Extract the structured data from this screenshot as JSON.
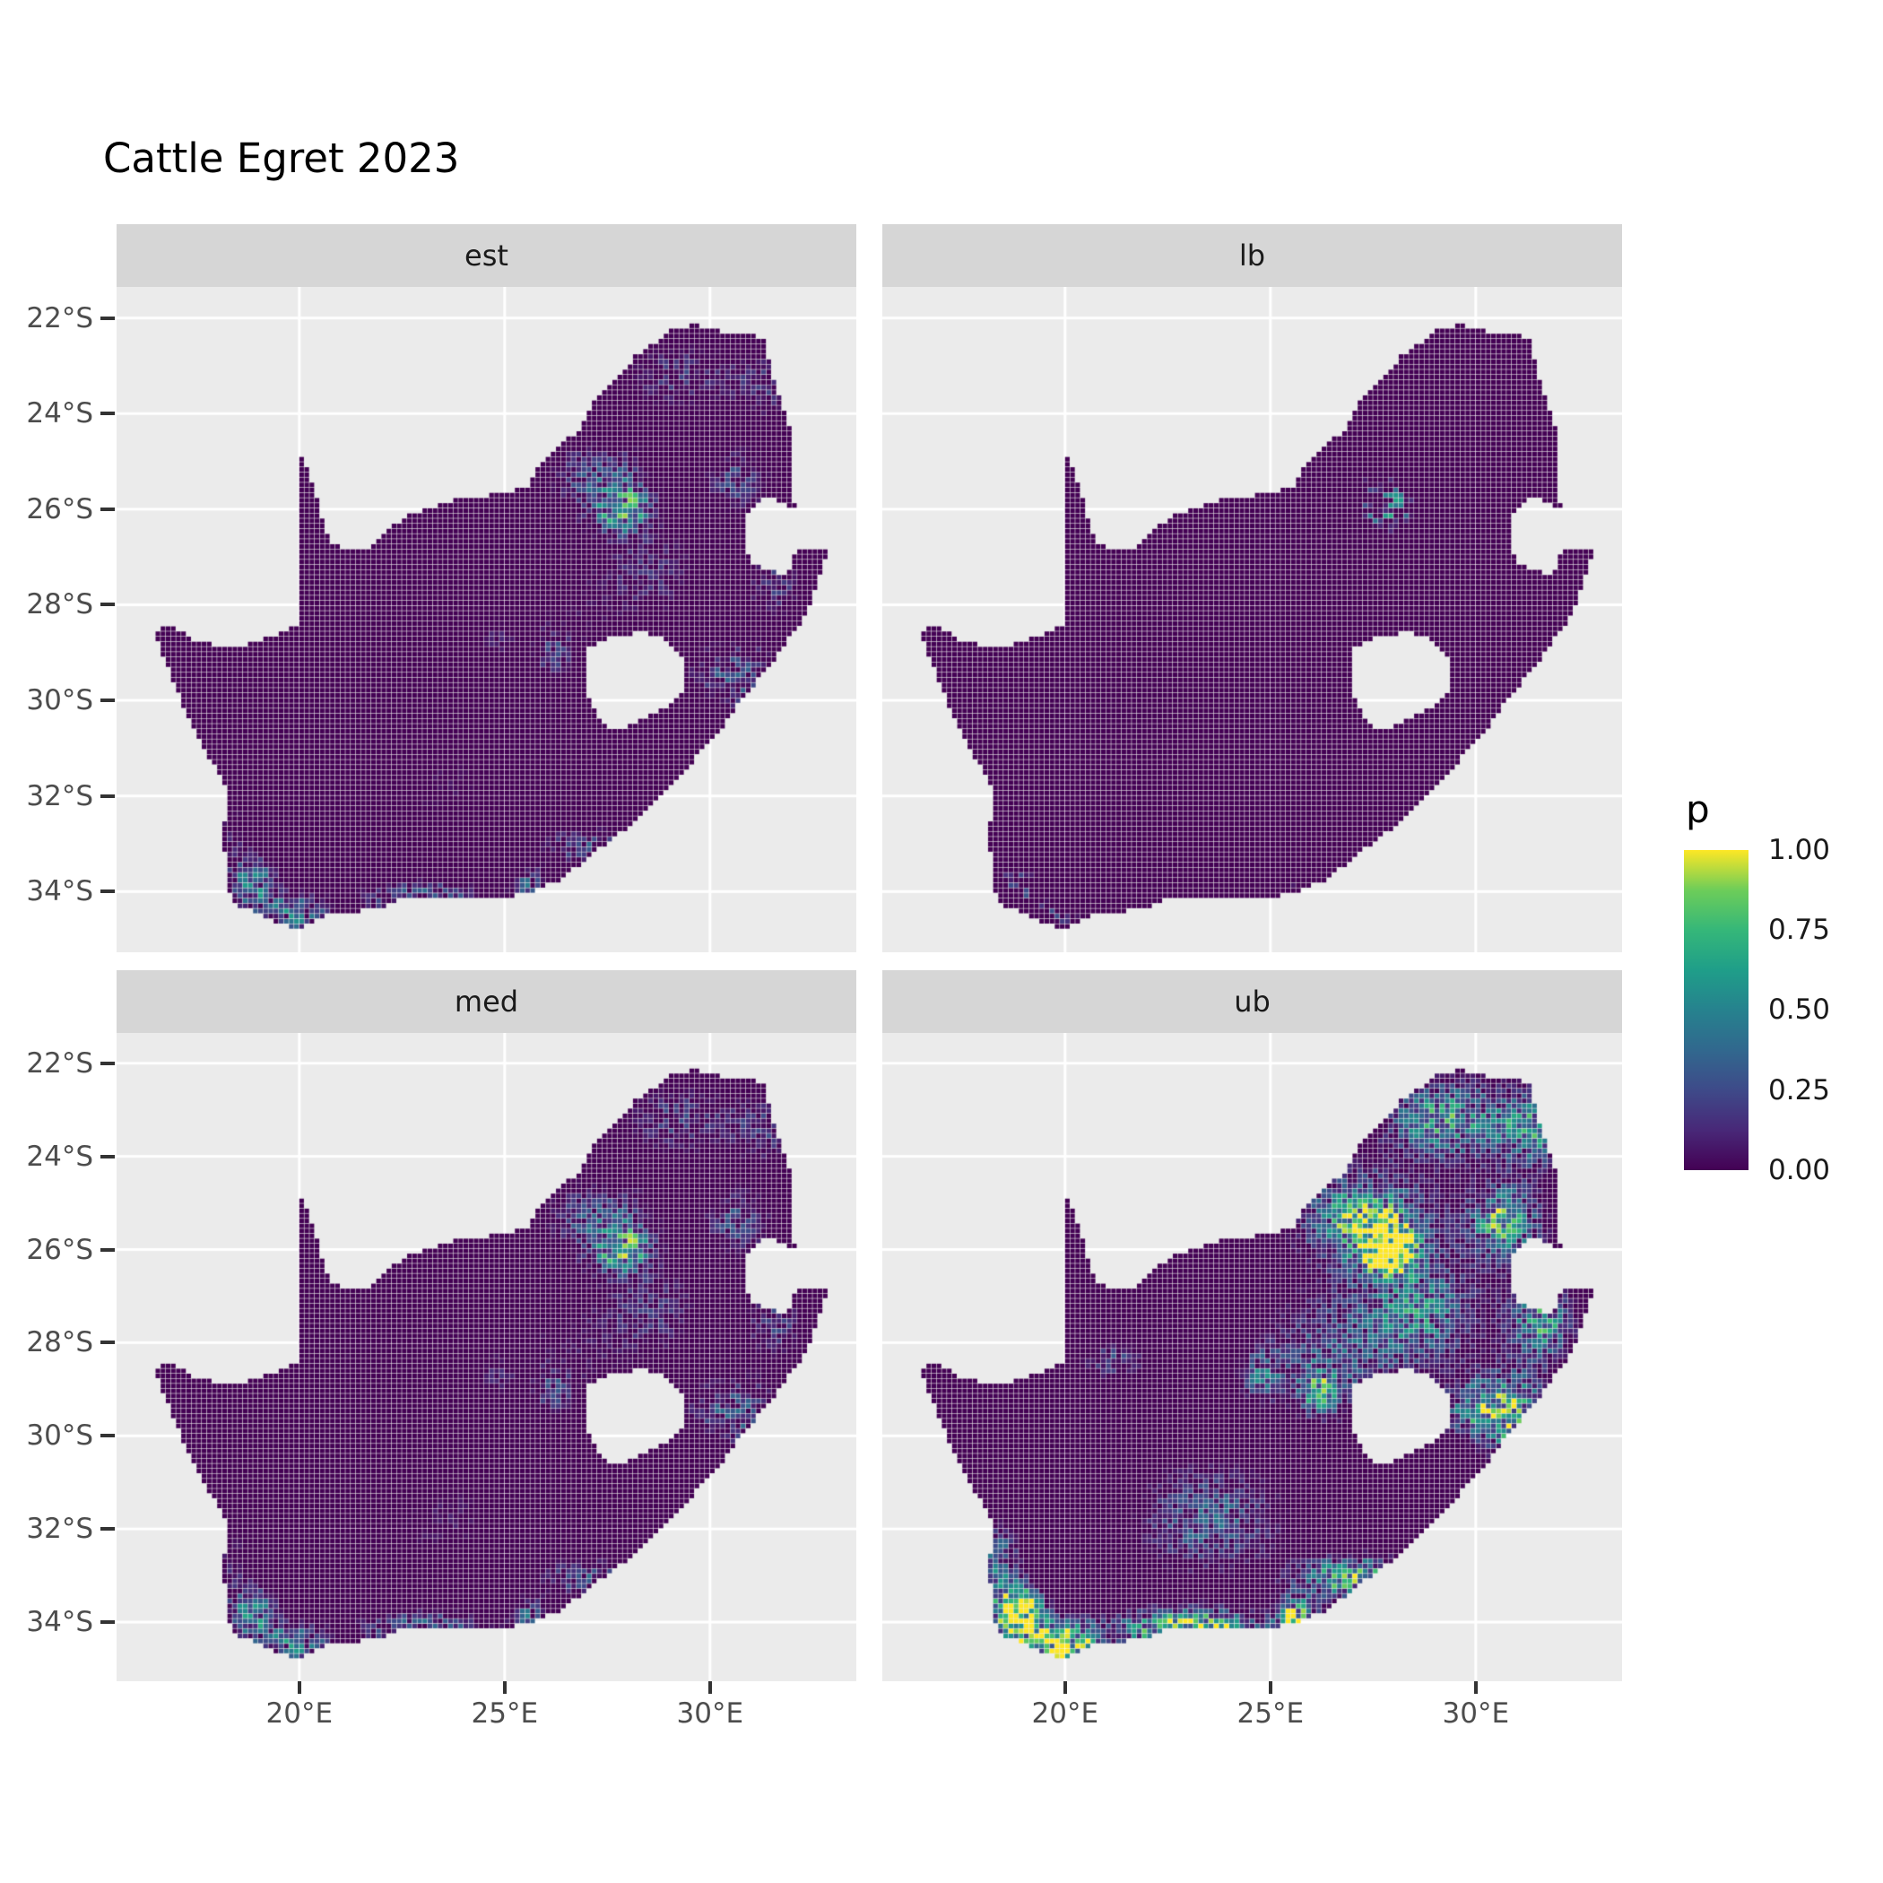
{
  "title": "Cattle Egret 2023",
  "facets": [
    {
      "id": "est",
      "label": "est"
    },
    {
      "id": "lb",
      "label": "lb"
    },
    {
      "id": "med",
      "label": "med"
    },
    {
      "id": "ub",
      "label": "ub"
    }
  ],
  "axes": {
    "x_ticks": [
      {
        "label": "20°E",
        "deg": 20
      },
      {
        "label": "25°E",
        "deg": 25
      },
      {
        "label": "30°E",
        "deg": 30
      }
    ],
    "y_ticks": [
      {
        "label": "22°S",
        "deg": 22
      },
      {
        "label": "24°S",
        "deg": 24
      },
      {
        "label": "26°S",
        "deg": 26
      },
      {
        "label": "28°S",
        "deg": 28
      },
      {
        "label": "30°S",
        "deg": 30
      },
      {
        "label": "32°S",
        "deg": 32
      },
      {
        "label": "34°S",
        "deg": 34
      }
    ]
  },
  "legend": {
    "title": "p",
    "labels": [
      {
        "text": "1.00",
        "p": 1.0
      },
      {
        "text": "0.75",
        "p": 0.75
      },
      {
        "text": "0.50",
        "p": 0.5
      },
      {
        "text": "0.25",
        "p": 0.25
      },
      {
        "text": "0.00",
        "p": 0.0
      }
    ],
    "bar_ticks": [
      0.25,
      0.5,
      0.75
    ]
  },
  "colors": {
    "panel_bg": "#EBEBEB",
    "strip_bg": "#D6D6D6",
    "grid": "#FFFFFF",
    "axis_text": "#4D4D4D",
    "tick_mark": "#333333",
    "title_text": "#000000",
    "strip_text": "#1A1A1A",
    "viridis": [
      [
        "0",
        "#440154"
      ],
      [
        "0.125",
        "#482878"
      ],
      [
        "0.25",
        "#3E4A89"
      ],
      [
        "0.375",
        "#31688E"
      ],
      [
        "0.5",
        "#26828E"
      ],
      [
        "0.625",
        "#1F9E89"
      ],
      [
        "0.75",
        "#35B779"
      ],
      [
        "0.875",
        "#6DCD59"
      ],
      [
        "1",
        "#FDE725"
      ]
    ]
  },
  "chart_data": {
    "type": "heatmap",
    "title": "Cattle Egret 2023",
    "variable": "p",
    "facet_labels": [
      "est",
      "lb",
      "med",
      "ub"
    ],
    "x": {
      "tick_labels": [
        "20°E",
        "25°E",
        "30°E"
      ],
      "range_deg_east": [
        15.55,
        33.56
      ]
    },
    "y": {
      "tick_labels": [
        "22°S",
        "24°S",
        "26°S",
        "28°S",
        "30°S",
        "32°S",
        "34°S"
      ],
      "range_deg_south": [
        21.35,
        35.27
      ]
    },
    "legend": {
      "title": "p",
      "range": [
        0,
        1
      ],
      "tick_labels": [
        "1.00",
        "0.75",
        "0.50",
        "0.25",
        "0.00"
      ],
      "palette": "viridis"
    },
    "map": {
      "region": "South Africa raster grid (Lesotho shown as hole, Eswatini as eastern notch)",
      "outline": [
        [
          16.45,
          -28.58
        ],
        [
          16.9,
          -28.4
        ],
        [
          17.35,
          -28.7
        ],
        [
          17.95,
          -28.85
        ],
        [
          18.6,
          -28.87
        ],
        [
          19.25,
          -28.7
        ],
        [
          19.7,
          -28.5
        ],
        [
          19.99,
          -28.45
        ],
        [
          19.99,
          -24.78
        ],
        [
          20.25,
          -25.25
        ],
        [
          20.5,
          -25.9
        ],
        [
          20.63,
          -26.45
        ],
        [
          20.85,
          -26.75
        ],
        [
          21.3,
          -26.87
        ],
        [
          21.8,
          -26.8
        ],
        [
          22.15,
          -26.4
        ],
        [
          22.65,
          -26.15
        ],
        [
          23.25,
          -25.95
        ],
        [
          23.9,
          -25.77
        ],
        [
          24.4,
          -25.78
        ],
        [
          24.9,
          -25.65
        ],
        [
          25.55,
          -25.55
        ],
        [
          25.9,
          -25.0
        ],
        [
          26.25,
          -24.7
        ],
        [
          26.85,
          -24.35
        ],
        [
          27.25,
          -23.65
        ],
        [
          27.7,
          -23.25
        ],
        [
          28.2,
          -22.8
        ],
        [
          28.7,
          -22.5
        ],
        [
          29.1,
          -22.2
        ],
        [
          29.7,
          -22.15
        ],
        [
          30.3,
          -22.3
        ],
        [
          31.0,
          -22.35
        ],
        [
          31.3,
          -22.42
        ],
        [
          31.55,
          -23.3
        ],
        [
          31.85,
          -24.0
        ],
        [
          32.0,
          -24.5
        ],
        [
          31.95,
          -25.1
        ],
        [
          32.02,
          -25.65
        ],
        [
          32.08,
          -25.98
        ],
        [
          31.4,
          -25.75
        ],
        [
          30.98,
          -26.0
        ],
        [
          30.82,
          -26.35
        ],
        [
          30.82,
          -26.85
        ],
        [
          31.1,
          -27.15
        ],
        [
          31.5,
          -27.32
        ],
        [
          31.9,
          -27.33
        ],
        [
          32.12,
          -26.86
        ],
        [
          32.55,
          -26.86
        ],
        [
          32.89,
          -26.86
        ],
        [
          32.6,
          -27.6
        ],
        [
          32.35,
          -28.2
        ],
        [
          31.95,
          -28.7
        ],
        [
          31.35,
          -29.4
        ],
        [
          30.7,
          -30.05
        ],
        [
          30.2,
          -30.7
        ],
        [
          29.4,
          -31.45
        ],
        [
          28.7,
          -32.05
        ],
        [
          28.05,
          -32.65
        ],
        [
          27.3,
          -33.1
        ],
        [
          26.4,
          -33.75
        ],
        [
          25.65,
          -34.0
        ],
        [
          24.8,
          -34.2
        ],
        [
          23.9,
          -34.1
        ],
        [
          23.3,
          -34.1
        ],
        [
          22.5,
          -34.15
        ],
        [
          21.8,
          -34.4
        ],
        [
          20.8,
          -34.45
        ],
        [
          20.0,
          -34.82
        ],
        [
          19.3,
          -34.62
        ],
        [
          18.8,
          -34.4
        ],
        [
          18.45,
          -34.3
        ],
        [
          18.3,
          -34.0
        ],
        [
          18.25,
          -33.5
        ],
        [
          18.1,
          -32.8
        ],
        [
          18.3,
          -32.1
        ],
        [
          18.15,
          -31.65
        ],
        [
          17.85,
          -31.3
        ],
        [
          17.5,
          -30.7
        ],
        [
          17.15,
          -30.1
        ],
        [
          16.9,
          -29.5
        ],
        [
          16.65,
          -29.0
        ]
      ],
      "lesotho_hole": [
        [
          27.05,
          -28.92
        ],
        [
          27.6,
          -28.66
        ],
        [
          28.2,
          -28.6
        ],
        [
          28.7,
          -28.62
        ],
        [
          29.15,
          -28.92
        ],
        [
          29.45,
          -29.3
        ],
        [
          29.33,
          -29.78
        ],
        [
          28.9,
          -30.18
        ],
        [
          28.3,
          -30.42
        ],
        [
          27.75,
          -30.64
        ],
        [
          27.33,
          -30.44
        ],
        [
          27.08,
          -29.98
        ],
        [
          26.95,
          -29.45
        ]
      ]
    },
    "render_model": {
      "note": "approximate reconstruction of the probability raster; clusters are [lonE, latS, sigma_lon, sigma_lat, amplitude]",
      "cell_deg_lon": 0.125,
      "cell_deg_lat": 0.1074,
      "clusters": [
        [
          27.9,
          -26.0,
          0.55,
          0.45,
          1.15
        ],
        [
          27.3,
          -25.4,
          1.3,
          0.9,
          0.55
        ],
        [
          29.3,
          -23.2,
          1.5,
          0.8,
          0.45
        ],
        [
          31.4,
          -23.4,
          0.8,
          0.8,
          0.4
        ],
        [
          30.7,
          -25.4,
          0.8,
          0.7,
          0.5
        ],
        [
          31.6,
          -27.6,
          0.7,
          0.7,
          0.45
        ],
        [
          31.0,
          -29.6,
          0.8,
          0.9,
          0.5
        ],
        [
          30.0,
          -29.4,
          0.7,
          0.6,
          0.4
        ],
        [
          27.0,
          -33.05,
          1.3,
          0.45,
          0.6
        ],
        [
          23.0,
          -34.15,
          1.6,
          0.4,
          0.75
        ],
        [
          19.9,
          -34.5,
          0.9,
          0.5,
          0.85
        ],
        [
          18.85,
          -33.8,
          0.6,
          0.55,
          0.95
        ],
        [
          18.4,
          -32.7,
          0.5,
          0.8,
          0.35
        ],
        [
          26.5,
          -28.3,
          1.6,
          1.2,
          0.25
        ],
        [
          24.8,
          -28.7,
          0.5,
          0.5,
          0.3
        ],
        [
          21.2,
          -28.4,
          0.8,
          0.4,
          0.25
        ],
        [
          23.5,
          -31.8,
          1.8,
          1.2,
          0.3
        ],
        [
          26.2,
          -29.1,
          0.45,
          0.45,
          0.4
        ],
        [
          28.6,
          -27.3,
          1.2,
          1.0,
          0.32
        ],
        [
          25.6,
          -33.9,
          0.5,
          0.4,
          0.65
        ],
        [
          29.0,
          -26.6,
          4.0,
          3.2,
          0.1
        ]
      ],
      "facet_transforms": {
        "est": {
          "gain": 1.5,
          "offset": 0.17,
          "speckle_thr": 0.988
        },
        "lb": {
          "gain": 2.0,
          "offset": 0.45,
          "speckle_thr": 0.997
        },
        "med": {
          "gain": 1.55,
          "offset": 0.15,
          "speckle_thr": 0.985
        },
        "ub": {
          "gain": 3.2,
          "offset": 0.06,
          "speckle_thr": 0.93
        }
      }
    }
  }
}
